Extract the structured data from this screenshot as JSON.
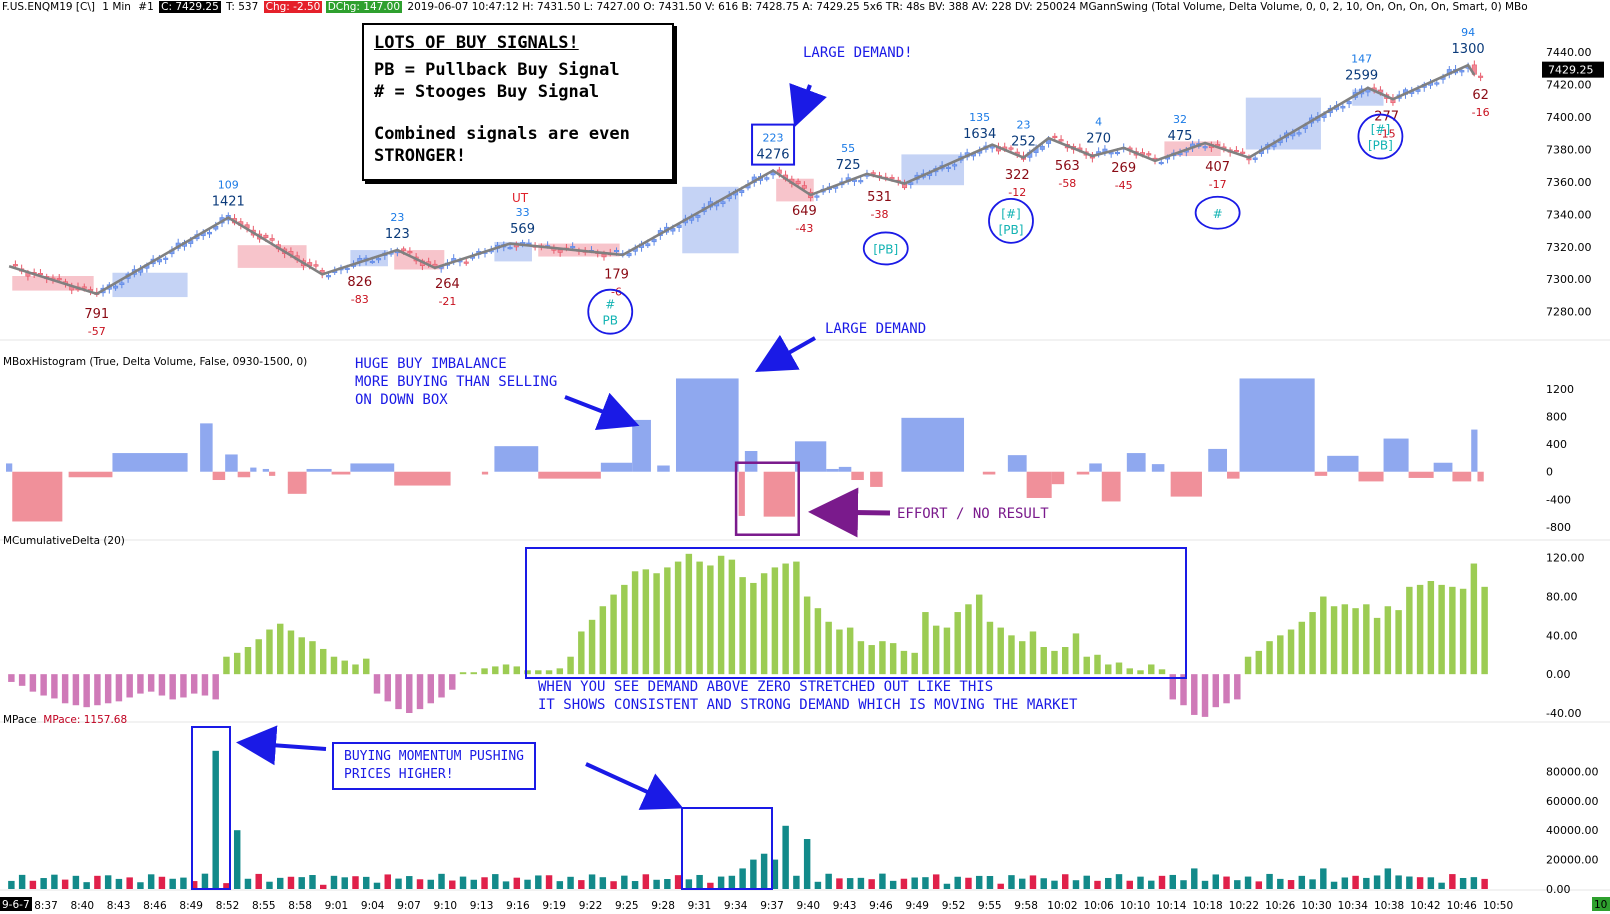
{
  "header": {
    "symbol": "F.US.ENQM19 [C\\]",
    "interval": "1 Min",
    "chart_no": "#1",
    "price_prefix": "C:",
    "price": "7429.25",
    "ticks": "T: 537",
    "chg": "Chg: -2.50",
    "dchg": "DChg: 147.00",
    "rest": "2019-06-07 10:47:12 H: 7431.50 L: 7427.00 O: 7431.50 V: 616 B: 7428.75 A: 7429.25 5x6 TR: 48s BV: 388 AV: 228 DV: 250024 MGannSwing  (Total Volume, Delta Volume, 0, 0, 2, 10, On, On, On, On, Smart, 0)  MBo"
  },
  "colors": {
    "up_candle": "#5b86e6",
    "down_candle": "#e85a6a",
    "up_box": "#c5d3f5",
    "down_box": "#f7c4cb",
    "histo_up": "#8fa8ef",
    "histo_down": "#f0909a",
    "cumdelta_pos": "#9ccc53",
    "cumdelta_neg": "#cf7ab8",
    "pace_up": "#128a8a",
    "pace_down": "#e0204a",
    "swing_line": "#808080",
    "annotation_blue": "#1a1ae6",
    "annotation_purple": "#7a1a8c"
  },
  "panels": {
    "histogram_label": "MBoxHistogram  (True, Delta Volume, False, 0930-1500, 0)",
    "cumdelta_label": "MCumulativeDelta  (20)",
    "pace_label": "MPace",
    "pace_value_label": "MPace: 1157.68"
  },
  "signals_box": {
    "title": "LOTS OF BUY SIGNALS!",
    "line1": "PB = Pullback Buy Signal",
    "line2": "# = Stooges Buy Signal",
    "line3": "Combined signals are even",
    "line4": "STRONGER!"
  },
  "annotations": {
    "large_demand_top": "LARGE DEMAND!",
    "large_demand_mid": "LARGE DEMAND",
    "huge_buy": "HUGE BUY IMBALANCE\nMORE BUYING THAN SELLING\nON DOWN BOX",
    "effort": "EFFORT / NO RESULT",
    "demand_note": "WHEN YOU SEE DEMAND ABOVE ZERO STRETCHED OUT LIKE THIS\nIT SHOWS CONSISTENT AND STRONG DEMAND WHICH IS MOVING THE MARKET",
    "momentum": "BUYING MOMENTUM PUSHING\nPRICES HIGHER!",
    "ut": "UT"
  },
  "chart_data": [
    {
      "type": "candlestick",
      "title": "F.US.ENQM19 1 Min",
      "ylim": [
        7265,
        7450
      ],
      "price_axis": [
        "7440.00",
        "7420.00",
        "7400.00",
        "7380.00",
        "7360.00",
        "7340.00",
        "7320.00",
        "7300.00",
        "7280.00"
      ],
      "current_price_label": "7429.25",
      "time_labels": [
        "9-6-7",
        "8:37",
        "8:40",
        "8:43",
        "8:46",
        "8:49",
        "8:52",
        "8:55",
        "8:58",
        "9:01",
        "9:04",
        "9:07",
        "9:10",
        "9:13",
        "9:16",
        "9:19",
        "9:22",
        "9:25",
        "9:28",
        "9:31",
        "9:34",
        "9:37",
        "9:40",
        "9:43",
        "9:46",
        "9:49",
        "9:52",
        "9:55",
        "9:58",
        "10:02",
        "10:06",
        "10:10",
        "10:14",
        "10:18",
        "10:22",
        "10:26",
        "10:30",
        "10:34",
        "10:38",
        "10:42",
        "10:46",
        "10:50"
      ],
      "right_end_label": "10",
      "swing_points": [
        {
          "bar": 0,
          "price": 7308
        },
        {
          "bar": 14,
          "price": 7291
        },
        {
          "bar": 35,
          "price": 7338
        },
        {
          "bar": 50,
          "price": 7303
        },
        {
          "bar": 62,
          "price": 7318
        },
        {
          "bar": 68,
          "price": 7307
        },
        {
          "bar": 80,
          "price": 7322
        },
        {
          "bar": 98,
          "price": 7315
        },
        {
          "bar": 122,
          "price": 7367
        },
        {
          "bar": 128,
          "price": 7352
        },
        {
          "bar": 137,
          "price": 7365
        },
        {
          "bar": 143,
          "price": 7359
        },
        {
          "bar": 157,
          "price": 7383
        },
        {
          "bar": 162,
          "price": 7375
        },
        {
          "bar": 166,
          "price": 7387
        },
        {
          "bar": 173,
          "price": 7376
        },
        {
          "bar": 178,
          "price": 7381
        },
        {
          "bar": 183,
          "price": 7373
        },
        {
          "bar": 191,
          "price": 7384
        },
        {
          "bar": 198,
          "price": 7375
        },
        {
          "bar": 217,
          "price": 7418
        },
        {
          "bar": 221,
          "price": 7411
        },
        {
          "bar": 233,
          "price": 7432
        },
        {
          "bar": 234,
          "price": 7426
        }
      ],
      "boxes": [
        {
          "from": 1,
          "to": 14,
          "low": 7293,
          "high": 7302,
          "dir": "down"
        },
        {
          "from": 17,
          "to": 29,
          "low": 7289,
          "high": 7304,
          "dir": "up"
        },
        {
          "from": 37,
          "to": 48,
          "low": 7307,
          "high": 7321,
          "dir": "down"
        },
        {
          "from": 55,
          "to": 61,
          "low": 7308,
          "high": 7318,
          "dir": "up"
        },
        {
          "from": 62,
          "to": 70,
          "low": 7306,
          "high": 7318,
          "dir": "down"
        },
        {
          "from": 78,
          "to": 84,
          "low": 7311,
          "high": 7323,
          "dir": "up"
        },
        {
          "from": 85,
          "to": 98,
          "low": 7314,
          "high": 7322,
          "dir": "down"
        },
        {
          "from": 108,
          "to": 117,
          "low": 7316,
          "high": 7357,
          "dir": "up"
        },
        {
          "from": 123,
          "to": 129,
          "low": 7348,
          "high": 7362,
          "dir": "down"
        },
        {
          "from": 143,
          "to": 153,
          "low": 7358,
          "high": 7377,
          "dir": "up"
        },
        {
          "from": 185,
          "to": 194,
          "low": 7376,
          "high": 7385,
          "dir": "down"
        },
        {
          "from": 198,
          "to": 210,
          "low": 7380,
          "high": 7412,
          "dir": "up"
        },
        {
          "from": 215,
          "to": 220,
          "low": 7407,
          "high": 7417,
          "dir": "up"
        }
      ],
      "swing_labels": [
        {
          "bar": 35,
          "pos": "above",
          "vol": "1421",
          "delta": "109"
        },
        {
          "bar": 14,
          "pos": "below",
          "vol": "791",
          "delta": "-57"
        },
        {
          "bar": 62,
          "pos": "above",
          "vol": "123",
          "delta": "23"
        },
        {
          "bar": 56,
          "pos": "below",
          "vol": "826",
          "delta": "-83"
        },
        {
          "bar": 70,
          "pos": "below",
          "vol": "264",
          "delta": "-21"
        },
        {
          "bar": 82,
          "pos": "above",
          "vol": "569",
          "delta": "33"
        },
        {
          "bar": 97,
          "pos": "below",
          "vol": "179",
          "delta": "-6"
        },
        {
          "bar": 122,
          "pos": "above",
          "vol": "4276",
          "delta": "223"
        },
        {
          "bar": 127,
          "pos": "below",
          "vol": "649",
          "delta": "-43"
        },
        {
          "bar": 134,
          "pos": "above",
          "vol": "725",
          "delta": "55"
        },
        {
          "bar": 139,
          "pos": "below",
          "vol": "531",
          "delta": "-38"
        },
        {
          "bar": 155,
          "pos": "above",
          "vol": "1634",
          "delta": "135"
        },
        {
          "bar": 161,
          "pos": "below",
          "vol": "322",
          "delta": "-12"
        },
        {
          "bar": 162,
          "pos": "above",
          "vol": "252",
          "delta": "23"
        },
        {
          "bar": 169,
          "pos": "below",
          "vol": "563",
          "delta": "-58"
        },
        {
          "bar": 174,
          "pos": "above",
          "vol": "270",
          "delta": "4"
        },
        {
          "bar": 178,
          "pos": "below",
          "vol": "269",
          "delta": "-45"
        },
        {
          "bar": 187,
          "pos": "above",
          "vol": "475",
          "delta": "32"
        },
        {
          "bar": 193,
          "pos": "below",
          "vol": "407",
          "delta": "-17"
        },
        {
          "bar": 216,
          "pos": "above",
          "vol": "2599",
          "delta": "147"
        },
        {
          "bar": 220,
          "pos": "below",
          "vol": "277",
          "delta": "-15"
        },
        {
          "bar": 233,
          "pos": "above",
          "vol": "1300",
          "delta": "94"
        },
        {
          "bar": 235,
          "pos": "below",
          "vol": "62",
          "delta": "-16"
        }
      ],
      "signal_marks": [
        {
          "bar": 96,
          "price": 7280,
          "text": [
            "#",
            "PB"
          ]
        },
        {
          "bar": 140,
          "price": 7319,
          "text": [
            "[PB]"
          ]
        },
        {
          "bar": 160,
          "price": 7336,
          "text": [
            "[#]",
            "[PB]"
          ]
        },
        {
          "bar": 193,
          "price": 7341,
          "text": [
            "#"
          ]
        },
        {
          "bar": 219,
          "price": 7388,
          "text": [
            "[#]",
            "[PB]"
          ]
        }
      ]
    },
    {
      "type": "bar",
      "title": "MBoxHistogram",
      "ylim": [
        -800,
        1400
      ],
      "y_ticks": [
        "1200",
        "800",
        "400",
        "0",
        "-400",
        "-800"
      ],
      "boxes": [
        {
          "from": 0,
          "to": 1,
          "value": 120
        },
        {
          "from": 1,
          "to": 9,
          "value": -720
        },
        {
          "from": 10,
          "to": 17,
          "value": -80
        },
        {
          "from": 17,
          "to": 29,
          "value": 270
        },
        {
          "from": 31,
          "to": 33,
          "value": 700
        },
        {
          "from": 33,
          "to": 35,
          "value": -120
        },
        {
          "from": 35,
          "to": 37,
          "value": 250
        },
        {
          "from": 37,
          "to": 39,
          "value": -80
        },
        {
          "from": 39,
          "to": 40,
          "value": 60
        },
        {
          "from": 41,
          "to": 42,
          "value": 40
        },
        {
          "from": 42,
          "to": 43,
          "value": -60
        },
        {
          "from": 45,
          "to": 48,
          "value": -320
        },
        {
          "from": 48,
          "to": 52,
          "value": 40
        },
        {
          "from": 52,
          "to": 55,
          "value": -40
        },
        {
          "from": 55,
          "to": 62,
          "value": 120
        },
        {
          "from": 62,
          "to": 71,
          "value": -200
        },
        {
          "from": 76,
          "to": 77,
          "value": -40
        },
        {
          "from": 78,
          "to": 85,
          "value": 370
        },
        {
          "from": 85,
          "to": 95,
          "value": -100
        },
        {
          "from": 95,
          "to": 100,
          "value": 130
        },
        {
          "from": 100,
          "to": 103,
          "value": 750
        },
        {
          "from": 104,
          "to": 106,
          "value": 90
        },
        {
          "from": 107,
          "to": 117,
          "value": 1350
        },
        {
          "from": 117,
          "to": 118,
          "value": -640
        },
        {
          "from": 118,
          "to": 120,
          "value": 300
        },
        {
          "from": 121,
          "to": 126,
          "value": -650
        },
        {
          "from": 126,
          "to": 131,
          "value": 440
        },
        {
          "from": 131,
          "to": 133,
          "value": 40
        },
        {
          "from": 133,
          "to": 135,
          "value": 70
        },
        {
          "from": 135,
          "to": 137,
          "value": -120
        },
        {
          "from": 138,
          "to": 140,
          "value": -220
        },
        {
          "from": 143,
          "to": 153,
          "value": 780
        },
        {
          "from": 156,
          "to": 158,
          "value": -40
        },
        {
          "from": 160,
          "to": 163,
          "value": 240
        },
        {
          "from": 163,
          "to": 167,
          "value": -380
        },
        {
          "from": 167,
          "to": 169,
          "value": -180
        },
        {
          "from": 171,
          "to": 173,
          "value": -40
        },
        {
          "from": 173,
          "to": 175,
          "value": 120
        },
        {
          "from": 175,
          "to": 178,
          "value": -430
        },
        {
          "from": 179,
          "to": 182,
          "value": 270
        },
        {
          "from": 183,
          "to": 185,
          "value": 110
        },
        {
          "from": 186,
          "to": 191,
          "value": -360
        },
        {
          "from": 192,
          "to": 195,
          "value": 330
        },
        {
          "from": 195,
          "to": 197,
          "value": -100
        },
        {
          "from": 197,
          "to": 209,
          "value": 1350
        },
        {
          "from": 209,
          "to": 211,
          "value": -60
        },
        {
          "from": 211,
          "to": 216,
          "value": 230
        },
        {
          "from": 216,
          "to": 220,
          "value": -140
        },
        {
          "from": 220,
          "to": 224,
          "value": 480
        },
        {
          "from": 224,
          "to": 228,
          "value": -90
        },
        {
          "from": 228,
          "to": 231,
          "value": 130
        },
        {
          "from": 231,
          "to": 234,
          "value": -140
        },
        {
          "from": 234,
          "to": 235,
          "value": 610
        },
        {
          "from": 235,
          "to": 236,
          "value": -140
        }
      ]
    },
    {
      "type": "bar",
      "title": "MCumulativeDelta (20)",
      "ylim": [
        -40,
        130
      ],
      "y_ticks": [
        "120.00",
        "80.00",
        "40.00",
        "0.00",
        "-40.00"
      ],
      "values": [
        -8,
        -12,
        -18,
        -22,
        -25,
        -30,
        -32,
        -34,
        -32,
        -30,
        -28,
        -24,
        -20,
        -18,
        -22,
        -26,
        -24,
        -20,
        -22,
        -26,
        18,
        22,
        28,
        36,
        46,
        52,
        45,
        38,
        34,
        26,
        18,
        14,
        10,
        16,
        -20,
        -28,
        -36,
        -40,
        -36,
        -30,
        -24,
        -16,
        2,
        2,
        6,
        8,
        10,
        8,
        4,
        4,
        4,
        6,
        18,
        44,
        56,
        70,
        82,
        92,
        106,
        108,
        104,
        110,
        116,
        124,
        116,
        112,
        122,
        118,
        100,
        94,
        104,
        110,
        114,
        116,
        80,
        68,
        54,
        46,
        48,
        34,
        30,
        34,
        32,
        24,
        22,
        64,
        50,
        48,
        64,
        72,
        82,
        54,
        48,
        40,
        34,
        44,
        28,
        24,
        28,
        42,
        18,
        20,
        10,
        12,
        6,
        4,
        10,
        5,
        -26,
        -32,
        -42,
        -44,
        -34,
        -30,
        -26,
        18,
        24,
        34,
        40,
        46,
        54,
        64,
        80,
        70,
        72,
        68,
        72,
        58,
        70,
        66,
        90,
        92,
        96,
        92,
        90,
        88,
        114,
        90
      ]
    },
    {
      "type": "bar",
      "title": "MPace",
      "ylim": [
        0,
        100000
      ],
      "y_ticks": [
        "80000.00",
        "60000.00",
        "40000.00",
        "20000.00",
        "0.00"
      ],
      "value_label": "1157.68"
    }
  ]
}
